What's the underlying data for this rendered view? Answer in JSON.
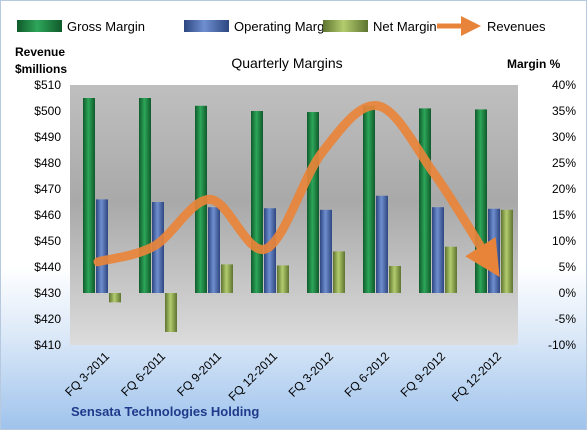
{
  "chart_data": {
    "type": "bar",
    "title": "Quarterly Margins",
    "left_axis_title_line1": "Revenue",
    "left_axis_title_line2": "$millions",
    "right_axis_title": "Margin  %",
    "categories": [
      "FQ 3-2011",
      "FQ 6-2011",
      "FQ 9-2011",
      "FQ 12-2011",
      "FQ 3-2012",
      "FQ 6-2012",
      "FQ 9-2012",
      "FQ 12-2012"
    ],
    "left_ticks": [
      "$410",
      "$420",
      "$430",
      "$440",
      "$450",
      "$460",
      "$470",
      "$480",
      "$490",
      "$500",
      "$510"
    ],
    "right_ticks": [
      "-10%",
      "-5%",
      "0%",
      "5%",
      "10%",
      "15%",
      "20%",
      "25%",
      "30%",
      "35%",
      "40%"
    ],
    "ylim_left": [
      410,
      510
    ],
    "ylim_right": [
      -10,
      40
    ],
    "legend_position": "top",
    "series": [
      {
        "name": "Gross Margin",
        "axis": "right",
        "color": "#1e8a45",
        "values": [
          37.5,
          37.5,
          36.0,
          35.0,
          34.8,
          36.0,
          35.5,
          35.3
        ]
      },
      {
        "name": "Operating Margin",
        "axis": "right",
        "color": "#4f6fb5",
        "values": [
          18.0,
          17.5,
          16.5,
          16.3,
          16.0,
          18.7,
          16.5,
          16.2
        ]
      },
      {
        "name": "Net Margin",
        "axis": "right",
        "color": "#92ad52",
        "values": [
          -1.8,
          -7.5,
          5.5,
          5.3,
          8.0,
          5.2,
          8.9,
          16.0
        ]
      },
      {
        "name": "Revenues",
        "axis": "left",
        "color": "#e8843a",
        "values": [
          442,
          448,
          466,
          447,
          484,
          502,
          476,
          442
        ]
      }
    ],
    "footer": "Sensata Technologies Holding",
    "grid": false
  }
}
